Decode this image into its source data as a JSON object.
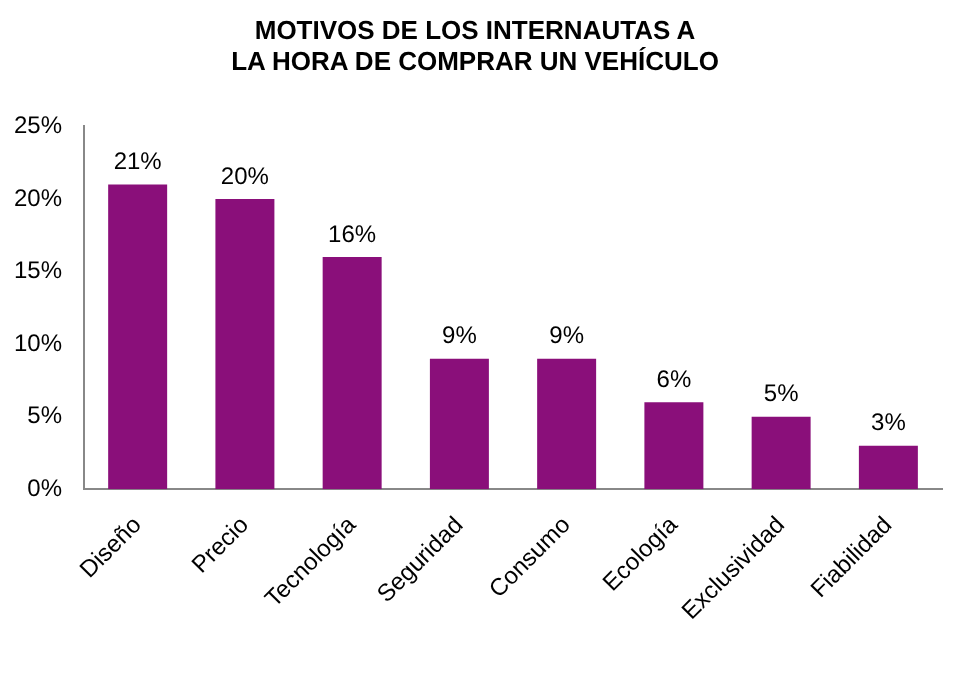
{
  "chart_data": {
    "type": "bar",
    "title": "MOTIVOS DE LOS INTERNAUTAS A\nLA HORA DE COMPRAR UN VEHÍCULO",
    "categories": [
      "Diseño",
      "Precio",
      "Tecnología",
      "Seguridad",
      "Consumo",
      "Ecología",
      "Exclusividad",
      "Fiabilidad"
    ],
    "values": [
      21,
      20,
      16,
      9,
      9,
      6,
      5,
      3
    ],
    "value_labels": [
      "21%",
      "20%",
      "16%",
      "9%",
      "9%",
      "6%",
      "5%",
      "3%"
    ],
    "color": "#8a0f7a",
    "ylim": [
      0,
      25
    ],
    "yticks": [
      {
        "value": 0,
        "label": "0%"
      },
      {
        "value": 5,
        "label": "5%"
      },
      {
        "value": 10,
        "label": "10%"
      },
      {
        "value": 15,
        "label": "15%"
      },
      {
        "value": 20,
        "label": "20%"
      },
      {
        "value": 25,
        "label": "25%"
      }
    ],
    "grid": false,
    "legend": false
  }
}
